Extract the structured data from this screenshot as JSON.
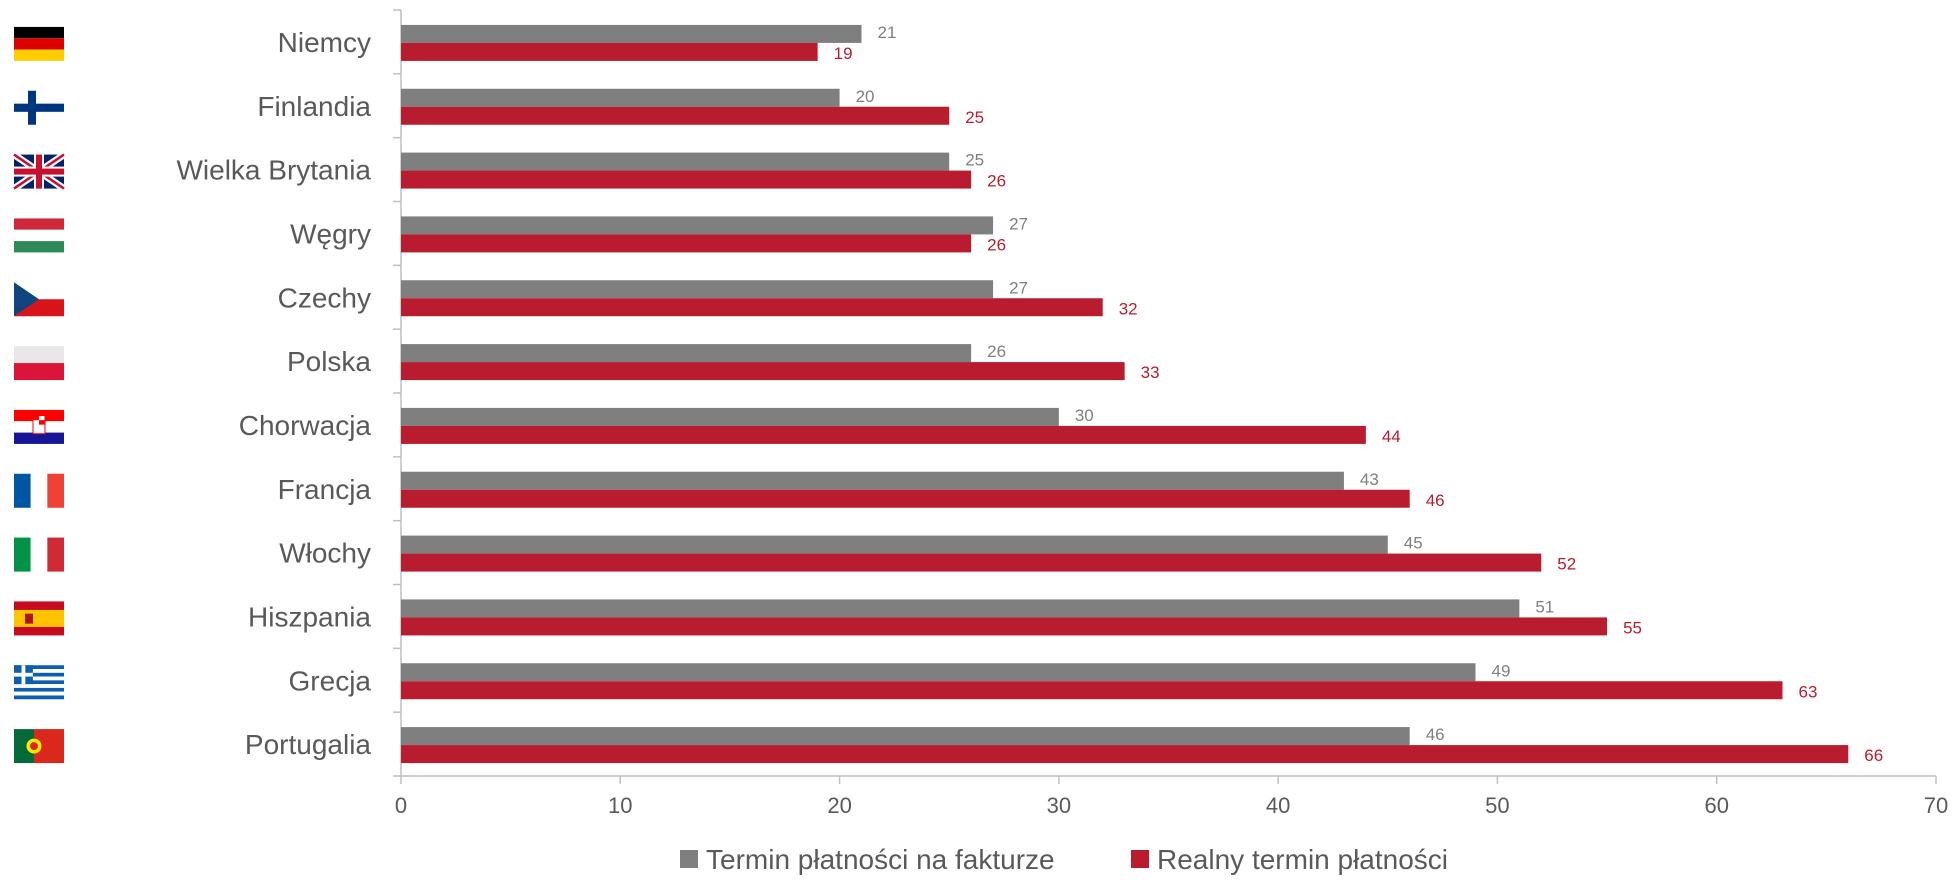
{
  "chart_data": {
    "type": "bar",
    "orientation": "horizontal",
    "categories": [
      "Niemcy",
      "Finlandia",
      "Wielka Brytania",
      "Węgry",
      "Czechy",
      "Polska",
      "Chorwacja",
      "Francja",
      "Włochy",
      "Hiszpania",
      "Grecja",
      "Portugalia"
    ],
    "flags": [
      "germany-flag",
      "finland-flag",
      "uk-flag",
      "hungary-flag",
      "czech-flag",
      "poland-flag",
      "croatia-flag",
      "france-flag",
      "italy-flag",
      "spain-flag",
      "greece-flag",
      "portugal-flag"
    ],
    "series": [
      {
        "name": "Termin płatności na fakturze",
        "color": "#7f7f7f",
        "values": [
          21,
          20,
          25,
          27,
          27,
          26,
          30,
          43,
          45,
          51,
          49,
          46
        ]
      },
      {
        "name": "Realny termin płatności",
        "color": "#b81c2e",
        "values": [
          19,
          25,
          26,
          26,
          32,
          33,
          44,
          46,
          52,
          55,
          63,
          66
        ]
      }
    ],
    "xlim": [
      0,
      70
    ],
    "xticks": [
      0,
      10,
      20,
      30,
      40,
      50,
      60,
      70
    ],
    "grid": false,
    "legend_position": "bottom"
  }
}
